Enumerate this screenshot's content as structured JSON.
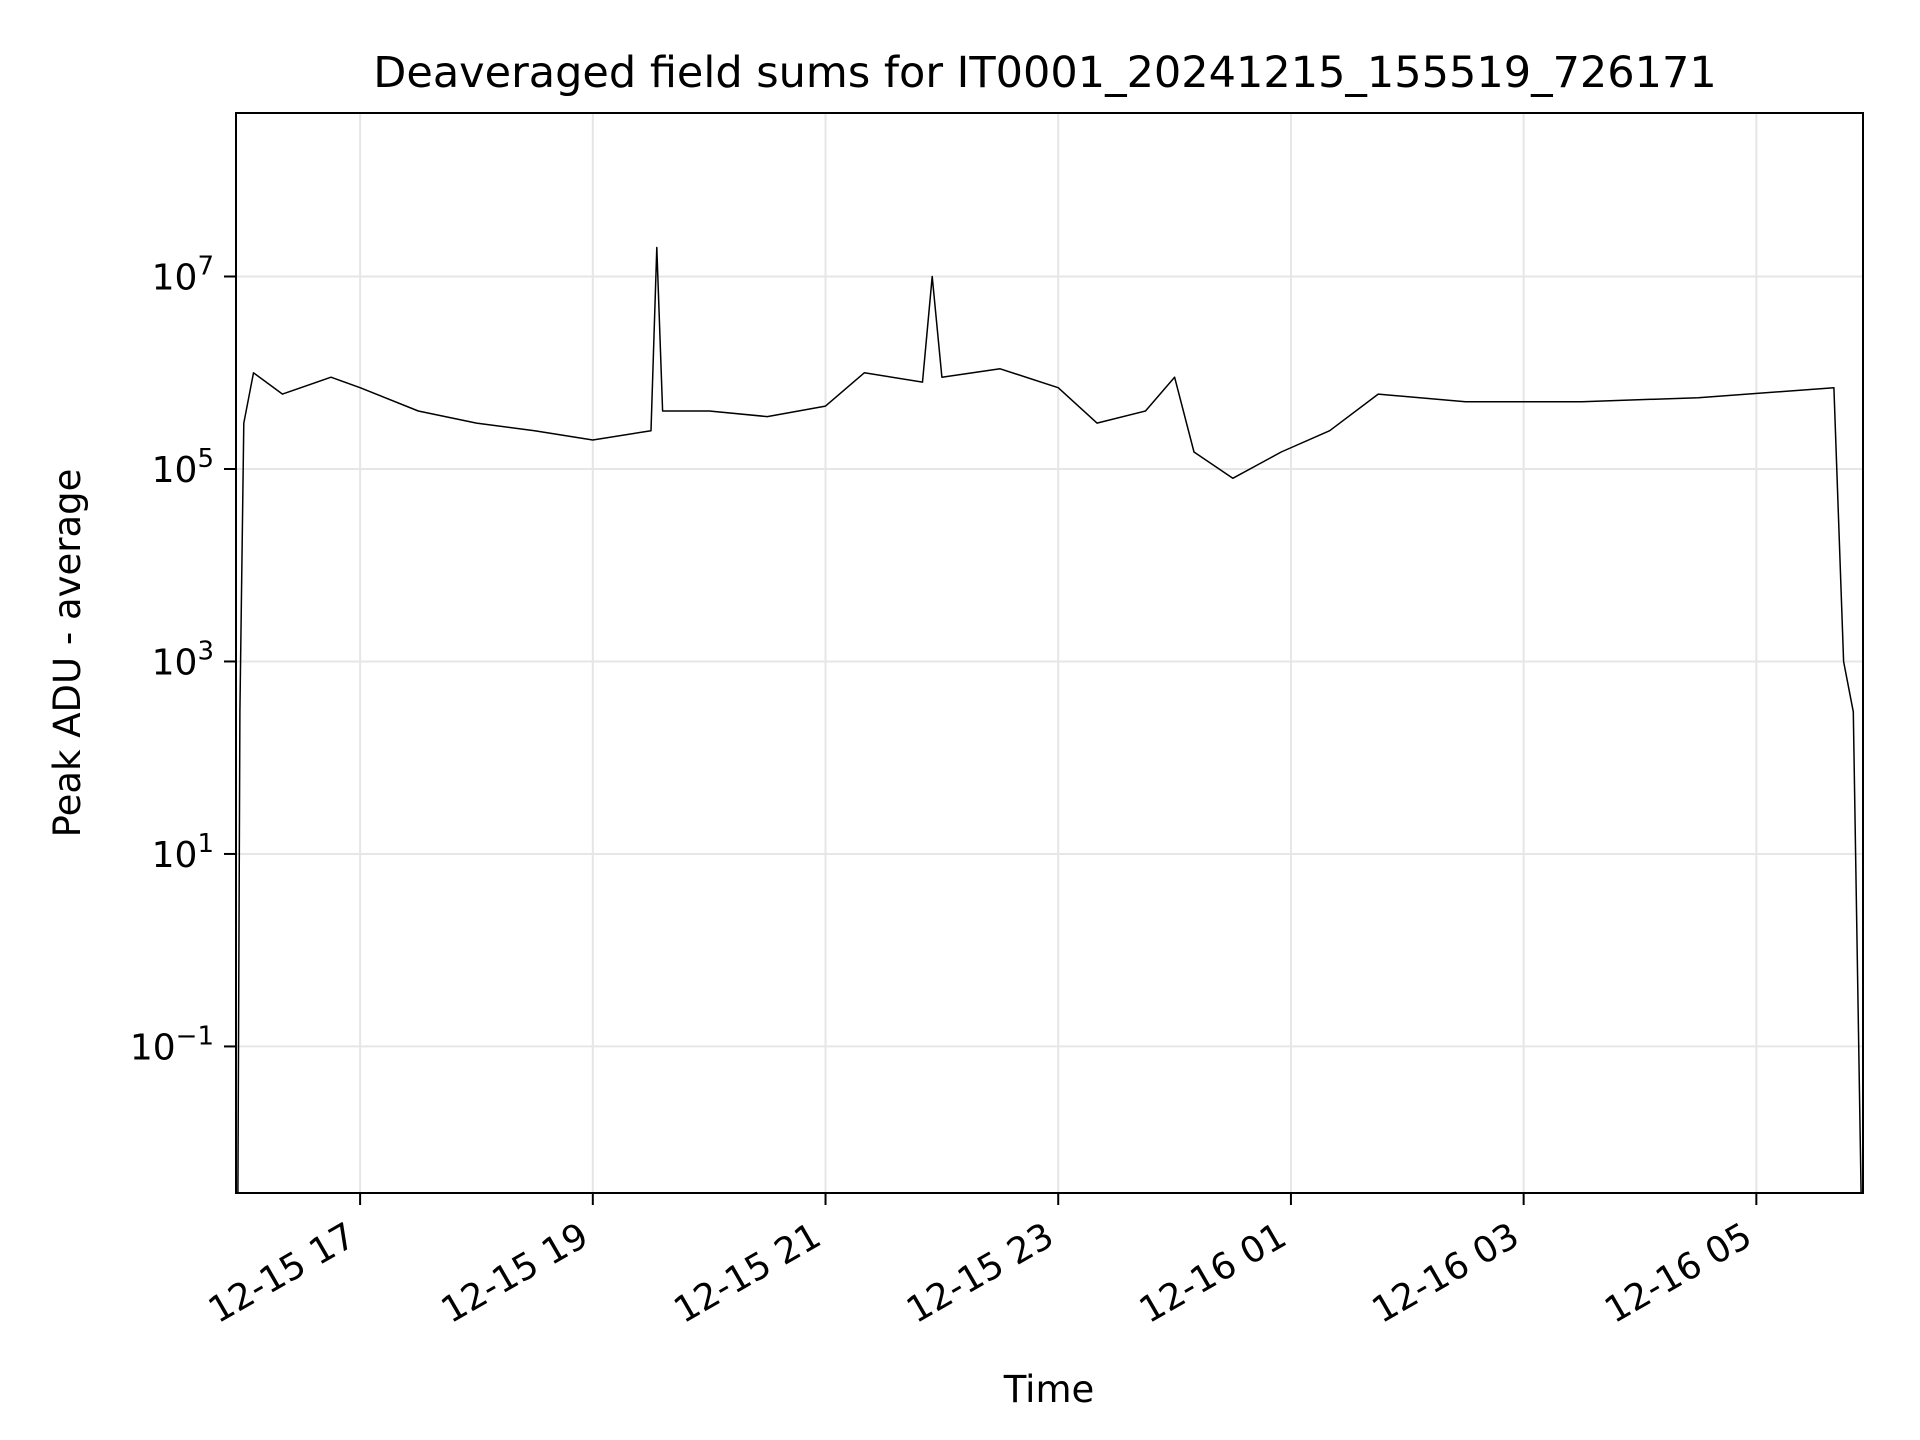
{
  "chart_data": {
    "type": "line",
    "title": "Deaveraged field sums for IT0001_20241215_155519_726171",
    "xlabel": "Time",
    "ylabel": "Peak ADU - average",
    "y_scale": "log",
    "xlim": [
      "2024-12-15 15:56",
      "2024-12-16 05:55"
    ],
    "ylim": [
      0.003,
      500000000
    ],
    "grid": true,
    "line_color": "#000000",
    "x_tick_labels": [
      "12-15 17",
      "12-15 19",
      "12-15 21",
      "12-15 23",
      "12-16 01",
      "12-16 03",
      "12-16 05"
    ],
    "x_ticks": [
      "2024-12-15 17:00",
      "2024-12-15 19:00",
      "2024-12-15 21:00",
      "2024-12-15 23:00",
      "2024-12-16 01:00",
      "2024-12-16 03:00",
      "2024-12-16 05:00"
    ],
    "y_ticks": [
      {
        "value": 0.1,
        "base": "10",
        "exp": "−1"
      },
      {
        "value": 10,
        "base": "10",
        "exp": "1"
      },
      {
        "value": 1000,
        "base": "10",
        "exp": "3"
      },
      {
        "value": 100000,
        "base": "10",
        "exp": "5"
      },
      {
        "value": 10000000,
        "base": "10",
        "exp": "7"
      }
    ],
    "series": [
      {
        "points": [
          [
            "2024-12-15 15:57",
            0.003
          ],
          [
            "2024-12-15 15:58",
            300
          ],
          [
            "2024-12-15 16:00",
            300000
          ],
          [
            "2024-12-15 16:05",
            1000000
          ],
          [
            "2024-12-15 16:20",
            600000
          ],
          [
            "2024-12-15 16:45",
            900000
          ],
          [
            "2024-12-15 17:00",
            700000
          ],
          [
            "2024-12-15 17:30",
            400000
          ],
          [
            "2024-12-15 18:00",
            300000
          ],
          [
            "2024-12-15 18:30",
            250000
          ],
          [
            "2024-12-15 19:00",
            200000
          ],
          [
            "2024-12-15 19:30",
            250000
          ],
          [
            "2024-12-15 19:33",
            20000000
          ],
          [
            "2024-12-15 19:36",
            400000
          ],
          [
            "2024-12-15 20:00",
            400000
          ],
          [
            "2024-12-15 20:30",
            350000
          ],
          [
            "2024-12-15 21:00",
            450000
          ],
          [
            "2024-12-15 21:20",
            1000000
          ],
          [
            "2024-12-15 21:50",
            800000
          ],
          [
            "2024-12-15 21:55",
            10000000
          ],
          [
            "2024-12-15 22:00",
            900000
          ],
          [
            "2024-12-15 22:30",
            1100000
          ],
          [
            "2024-12-15 23:00",
            700000
          ],
          [
            "2024-12-15 23:20",
            300000
          ],
          [
            "2024-12-15 23:45",
            400000
          ],
          [
            "2024-12-16 00:00",
            900000
          ],
          [
            "2024-12-16 00:10",
            150000
          ],
          [
            "2024-12-16 00:30",
            80000
          ],
          [
            "2024-12-16 00:55",
            150000
          ],
          [
            "2024-12-16 01:20",
            250000
          ],
          [
            "2024-12-16 01:45",
            600000
          ],
          [
            "2024-12-16 02:30",
            500000
          ],
          [
            "2024-12-16 03:30",
            500000
          ],
          [
            "2024-12-16 04:30",
            550000
          ],
          [
            "2024-12-16 05:40",
            700000
          ],
          [
            "2024-12-16 05:45",
            1000
          ],
          [
            "2024-12-16 05:50",
            300
          ],
          [
            "2024-12-16 05:54",
            0.003
          ]
        ]
      }
    ]
  }
}
